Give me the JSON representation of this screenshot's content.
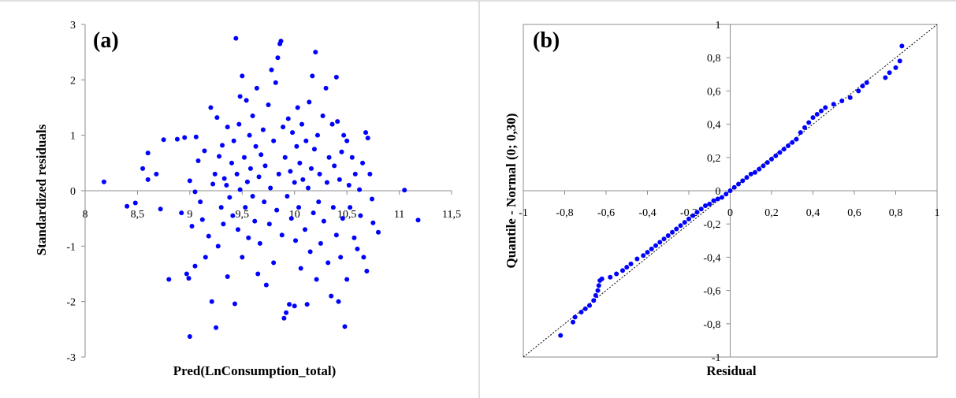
{
  "chart_data": [
    {
      "panel": "(a)",
      "type": "scatter",
      "title": "",
      "xlabel": "Pred(LnConsumption_total)",
      "ylabel": "Standardized residuals",
      "xlim": [
        8,
        11.5
      ],
      "ylim": [
        -3,
        3
      ],
      "x_ticks": [
        "8",
        "8,5",
        "9",
        "9,5",
        "10",
        "10,5",
        "11",
        "11,5"
      ],
      "y_ticks": [
        "-3",
        "-2",
        "-1",
        "0",
        "1",
        "2",
        "3"
      ],
      "marker_color": "#0000ff",
      "points": [
        [
          8.18,
          0.16
        ],
        [
          8.4,
          -0.28
        ],
        [
          8.48,
          -0.22
        ],
        [
          8.55,
          0.4
        ],
        [
          8.6,
          0.68
        ],
        [
          8.6,
          0.2
        ],
        [
          8.68,
          0.3
        ],
        [
          8.72,
          -0.33
        ],
        [
          8.75,
          0.92
        ],
        [
          8.8,
          -1.6
        ],
        [
          8.88,
          0.93
        ],
        [
          8.92,
          -0.4
        ],
        [
          8.95,
          0.96
        ],
        [
          8.97,
          -1.5
        ],
        [
          8.99,
          -1.58
        ],
        [
          9.0,
          -2.63
        ],
        [
          9.0,
          0.18
        ],
        [
          9.02,
          -0.64
        ],
        [
          9.05,
          -1.36
        ],
        [
          9.05,
          -0.02
        ],
        [
          9.06,
          0.97
        ],
        [
          9.08,
          0.54
        ],
        [
          9.1,
          -0.2
        ],
        [
          9.12,
          -0.52
        ],
        [
          9.14,
          0.72
        ],
        [
          9.15,
          -1.2
        ],
        [
          9.18,
          -0.82
        ],
        [
          9.2,
          1.5
        ],
        [
          9.21,
          -2.0
        ],
        [
          9.22,
          0.12
        ],
        [
          9.24,
          0.3
        ],
        [
          9.25,
          -2.47
        ],
        [
          9.26,
          1.32
        ],
        [
          9.27,
          -1.0
        ],
        [
          9.28,
          0.62
        ],
        [
          9.3,
          -0.3
        ],
        [
          9.31,
          0.82
        ],
        [
          9.32,
          -0.6
        ],
        [
          9.33,
          0.22
        ],
        [
          9.35,
          0.1
        ],
        [
          9.36,
          -1.55
        ],
        [
          9.36,
          1.15
        ],
        [
          9.38,
          -0.12
        ],
        [
          9.4,
          0.5
        ],
        [
          9.41,
          -0.45
        ],
        [
          9.42,
          0.9
        ],
        [
          9.43,
          -2.04
        ],
        [
          9.44,
          2.75
        ],
        [
          9.45,
          0.3
        ],
        [
          9.46,
          -0.7
        ],
        [
          9.47,
          1.2
        ],
        [
          9.48,
          0.02
        ],
        [
          9.48,
          1.7
        ],
        [
          9.5,
          2.07
        ],
        [
          9.5,
          -1.2
        ],
        [
          9.52,
          0.6
        ],
        [
          9.53,
          -0.3
        ],
        [
          9.54,
          1.63
        ],
        [
          9.55,
          0.16
        ],
        [
          9.56,
          -0.85
        ],
        [
          9.57,
          1.0
        ],
        [
          9.58,
          0.4
        ],
        [
          9.6,
          -0.1
        ],
        [
          9.6,
          1.35
        ],
        [
          9.62,
          -0.55
        ],
        [
          9.63,
          0.8
        ],
        [
          9.64,
          1.85
        ],
        [
          9.65,
          -1.5
        ],
        [
          9.66,
          0.25
        ],
        [
          9.67,
          -0.95
        ],
        [
          9.68,
          0.65
        ],
        [
          9.7,
          1.1
        ],
        [
          9.71,
          -0.2
        ],
        [
          9.72,
          0.45
        ],
        [
          9.73,
          -1.7
        ],
        [
          9.75,
          1.55
        ],
        [
          9.76,
          -0.6
        ],
        [
          9.77,
          0.05
        ],
        [
          9.78,
          2.18
        ],
        [
          9.8,
          0.9
        ],
        [
          9.8,
          -1.3
        ],
        [
          9.82,
          1.95
        ],
        [
          9.83,
          -0.35
        ],
        [
          9.84,
          2.4
        ],
        [
          9.85,
          0.3
        ],
        [
          9.86,
          2.65
        ],
        [
          9.87,
          2.7
        ],
        [
          9.88,
          -0.8
        ],
        [
          9.89,
          1.15
        ],
        [
          9.9,
          -2.3
        ],
        [
          9.91,
          0.6
        ],
        [
          9.92,
          -2.2
        ],
        [
          9.93,
          -0.1
        ],
        [
          9.94,
          1.3
        ],
        [
          9.95,
          -2.05
        ],
        [
          9.96,
          0.35
        ],
        [
          9.97,
          -0.5
        ],
        [
          9.98,
          1.05
        ],
        [
          10.0,
          -2.08
        ],
        [
          10.0,
          0.15
        ],
        [
          10.01,
          -0.9
        ],
        [
          10.02,
          0.8
        ],
        [
          10.03,
          1.5
        ],
        [
          10.04,
          -0.3
        ],
        [
          10.05,
          0.5
        ],
        [
          10.06,
          -1.4
        ],
        [
          10.07,
          1.2
        ],
        [
          10.08,
          0.2
        ],
        [
          10.1,
          -0.7
        ],
        [
          10.11,
          0.9
        ],
        [
          10.12,
          -2.05
        ],
        [
          10.13,
          0.05
        ],
        [
          10.14,
          1.6
        ],
        [
          10.15,
          -1.1
        ],
        [
          10.16,
          0.4
        ],
        [
          10.17,
          2.07
        ],
        [
          10.18,
          -0.4
        ],
        [
          10.19,
          0.75
        ],
        [
          10.2,
          2.5
        ],
        [
          10.21,
          -1.6
        ],
        [
          10.22,
          1.0
        ],
        [
          10.23,
          -0.2
        ],
        [
          10.24,
          0.3
        ],
        [
          10.25,
          -0.95
        ],
        [
          10.27,
          1.35
        ],
        [
          10.28,
          -0.55
        ],
        [
          10.3,
          1.85
        ],
        [
          10.31,
          0.15
        ],
        [
          10.32,
          -1.3
        ],
        [
          10.33,
          0.6
        ],
        [
          10.35,
          -1.9
        ],
        [
          10.36,
          1.2
        ],
        [
          10.37,
          -0.3
        ],
        [
          10.38,
          0.45
        ],
        [
          10.4,
          2.05
        ],
        [
          10.4,
          -0.8
        ],
        [
          10.41,
          1.25
        ],
        [
          10.42,
          -2.0
        ],
        [
          10.43,
          0.2
        ],
        [
          10.44,
          -1.2
        ],
        [
          10.45,
          0.7
        ],
        [
          10.46,
          -0.5
        ],
        [
          10.47,
          1.0
        ],
        [
          10.48,
          -2.45
        ],
        [
          10.5,
          0.9
        ],
        [
          10.5,
          -1.6
        ],
        [
          10.52,
          0.1
        ],
        [
          10.53,
          -0.3
        ],
        [
          10.55,
          0.6
        ],
        [
          10.57,
          -0.85
        ],
        [
          10.58,
          0.3
        ],
        [
          10.6,
          -1.05
        ],
        [
          10.62,
          0.02
        ],
        [
          10.63,
          -0.45
        ],
        [
          10.65,
          0.5
        ],
        [
          10.66,
          -1.2
        ],
        [
          10.68,
          1.05
        ],
        [
          10.69,
          -1.45
        ],
        [
          10.7,
          0.95
        ],
        [
          10.72,
          0.3
        ],
        [
          10.74,
          -0.15
        ],
        [
          10.75,
          -0.58
        ],
        [
          10.8,
          -0.75
        ],
        [
          11.05,
          0.01
        ],
        [
          11.18,
          -0.53
        ]
      ]
    },
    {
      "panel": "(b)",
      "type": "scatter",
      "title": "",
      "xlabel": "Residual",
      "ylabel": "Quantile - Normal (0; 0,30)",
      "xlim": [
        -1,
        1
      ],
      "ylim": [
        -1,
        1
      ],
      "x_ticks": [
        "-1",
        "-0,8",
        "-0,6",
        "-0,4",
        "-0,2",
        "0",
        "0,2",
        "0,4",
        "0,6",
        "0,8",
        "1"
      ],
      "y_ticks": [
        "-1",
        "-0,8",
        "-0,6",
        "-0,4",
        "-0,2",
        "0",
        "0,2",
        "0,4",
        "0,6",
        "0,8",
        "1"
      ],
      "reference_line": "y = x (dotted)",
      "marker_color": "#0000ff",
      "points": [
        [
          -0.82,
          -0.87
        ],
        [
          -0.76,
          -0.79
        ],
        [
          -0.75,
          -0.76
        ],
        [
          -0.72,
          -0.73
        ],
        [
          -0.7,
          -0.71
        ],
        [
          -0.68,
          -0.69
        ],
        [
          -0.66,
          -0.66
        ],
        [
          -0.65,
          -0.63
        ],
        [
          -0.64,
          -0.6
        ],
        [
          -0.635,
          -0.57
        ],
        [
          -0.63,
          -0.54
        ],
        [
          -0.62,
          -0.53
        ],
        [
          -0.58,
          -0.52
        ],
        [
          -0.55,
          -0.5
        ],
        [
          -0.52,
          -0.48
        ],
        [
          -0.5,
          -0.46
        ],
        [
          -0.48,
          -0.44
        ],
        [
          -0.45,
          -0.41
        ],
        [
          -0.42,
          -0.39
        ],
        [
          -0.4,
          -0.37
        ],
        [
          -0.38,
          -0.35
        ],
        [
          -0.36,
          -0.33
        ],
        [
          -0.34,
          -0.31
        ],
        [
          -0.32,
          -0.29
        ],
        [
          -0.3,
          -0.27
        ],
        [
          -0.28,
          -0.25
        ],
        [
          -0.26,
          -0.23
        ],
        [
          -0.24,
          -0.21
        ],
        [
          -0.22,
          -0.19
        ],
        [
          -0.2,
          -0.17
        ],
        [
          -0.18,
          -0.15
        ],
        [
          -0.16,
          -0.13
        ],
        [
          -0.14,
          -0.11
        ],
        [
          -0.12,
          -0.09
        ],
        [
          -0.1,
          -0.08
        ],
        [
          -0.08,
          -0.06
        ],
        [
          -0.06,
          -0.05
        ],
        [
          -0.04,
          -0.04
        ],
        [
          -0.02,
          -0.02
        ],
        [
          0.0,
          0.0
        ],
        [
          0.02,
          0.02
        ],
        [
          0.04,
          0.04
        ],
        [
          0.06,
          0.06
        ],
        [
          0.08,
          0.08
        ],
        [
          0.1,
          0.1
        ],
        [
          0.12,
          0.11
        ],
        [
          0.14,
          0.13
        ],
        [
          0.16,
          0.15
        ],
        [
          0.18,
          0.17
        ],
        [
          0.2,
          0.19
        ],
        [
          0.22,
          0.21
        ],
        [
          0.24,
          0.23
        ],
        [
          0.26,
          0.25
        ],
        [
          0.28,
          0.27
        ],
        [
          0.3,
          0.29
        ],
        [
          0.32,
          0.31
        ],
        [
          0.34,
          0.35
        ],
        [
          0.36,
          0.38
        ],
        [
          0.38,
          0.41
        ],
        [
          0.4,
          0.44
        ],
        [
          0.42,
          0.46
        ],
        [
          0.44,
          0.48
        ],
        [
          0.46,
          0.5
        ],
        [
          0.5,
          0.52
        ],
        [
          0.54,
          0.54
        ],
        [
          0.58,
          0.56
        ],
        [
          0.62,
          0.6
        ],
        [
          0.64,
          0.63
        ],
        [
          0.66,
          0.65
        ],
        [
          0.75,
          0.68
        ],
        [
          0.77,
          0.71
        ],
        [
          0.8,
          0.74
        ],
        [
          0.82,
          0.78
        ],
        [
          0.83,
          0.87
        ]
      ]
    }
  ]
}
